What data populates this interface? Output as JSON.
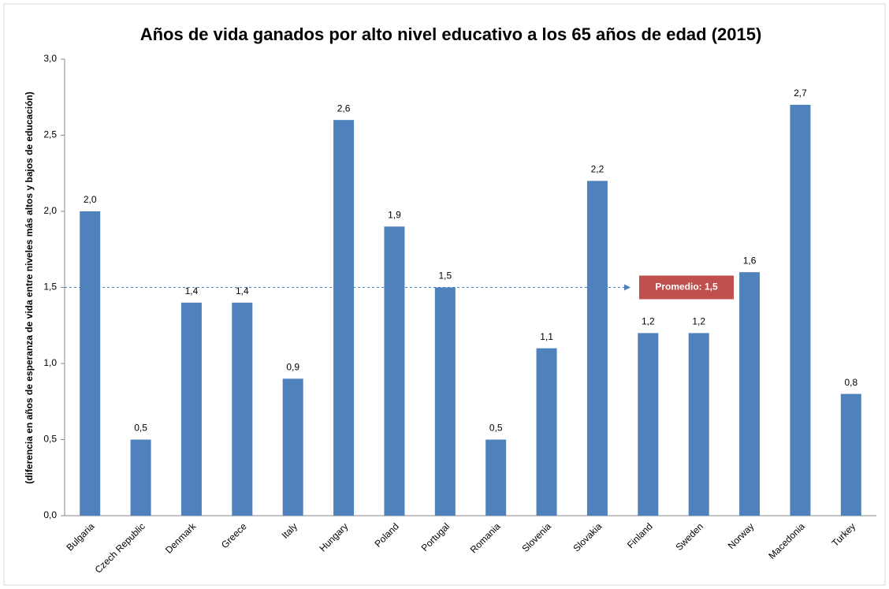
{
  "chart_data": {
    "type": "bar",
    "title": "Años de vida ganados por alto nivel educativo a los 65 años de edad (2015)",
    "y_label": "(diferencia en años de esperanza de vida entre niveles más altos y bajos de educación)",
    "categories": [
      "Bulgaria",
      "Czech Republic",
      "Denmark",
      "Greece",
      "Italy",
      "Hungary",
      "Poland",
      "Portugal",
      "Romania",
      "Slovenia",
      "Slovakia",
      "Finland",
      "Sweden",
      "Norway",
      "Macedonia",
      "Turkey"
    ],
    "values": [
      2.0,
      0.5,
      1.4,
      1.4,
      0.9,
      2.6,
      1.9,
      1.5,
      0.5,
      1.1,
      2.2,
      1.2,
      1.2,
      1.6,
      2.7,
      0.8
    ],
    "value_labels": [
      "2,0",
      "0,5",
      "1,4",
      "1,4",
      "0,9",
      "2,6",
      "1,9",
      "1,5",
      "0,5",
      "1,1",
      "2,2",
      "1,2",
      "1,2",
      "1,6",
      "2,7",
      "0,8"
    ],
    "color": "#4f81bd",
    "ylim": [
      0,
      3
    ],
    "yticks": [
      {
        "value": 0,
        "label": "0,0"
      },
      {
        "value": 0.5,
        "label": "0,5"
      },
      {
        "value": 1,
        "label": "1,0"
      },
      {
        "value": 1.5,
        "label": "1,5"
      },
      {
        "value": 2,
        "label": "2,0"
      },
      {
        "value": 2.5,
        "label": "2,5"
      },
      {
        "value": 3,
        "label": "3,0"
      }
    ],
    "average": {
      "value": 1.5,
      "label": "Promedio: 1,5",
      "color": "#c0504d"
    },
    "grid": false
  }
}
